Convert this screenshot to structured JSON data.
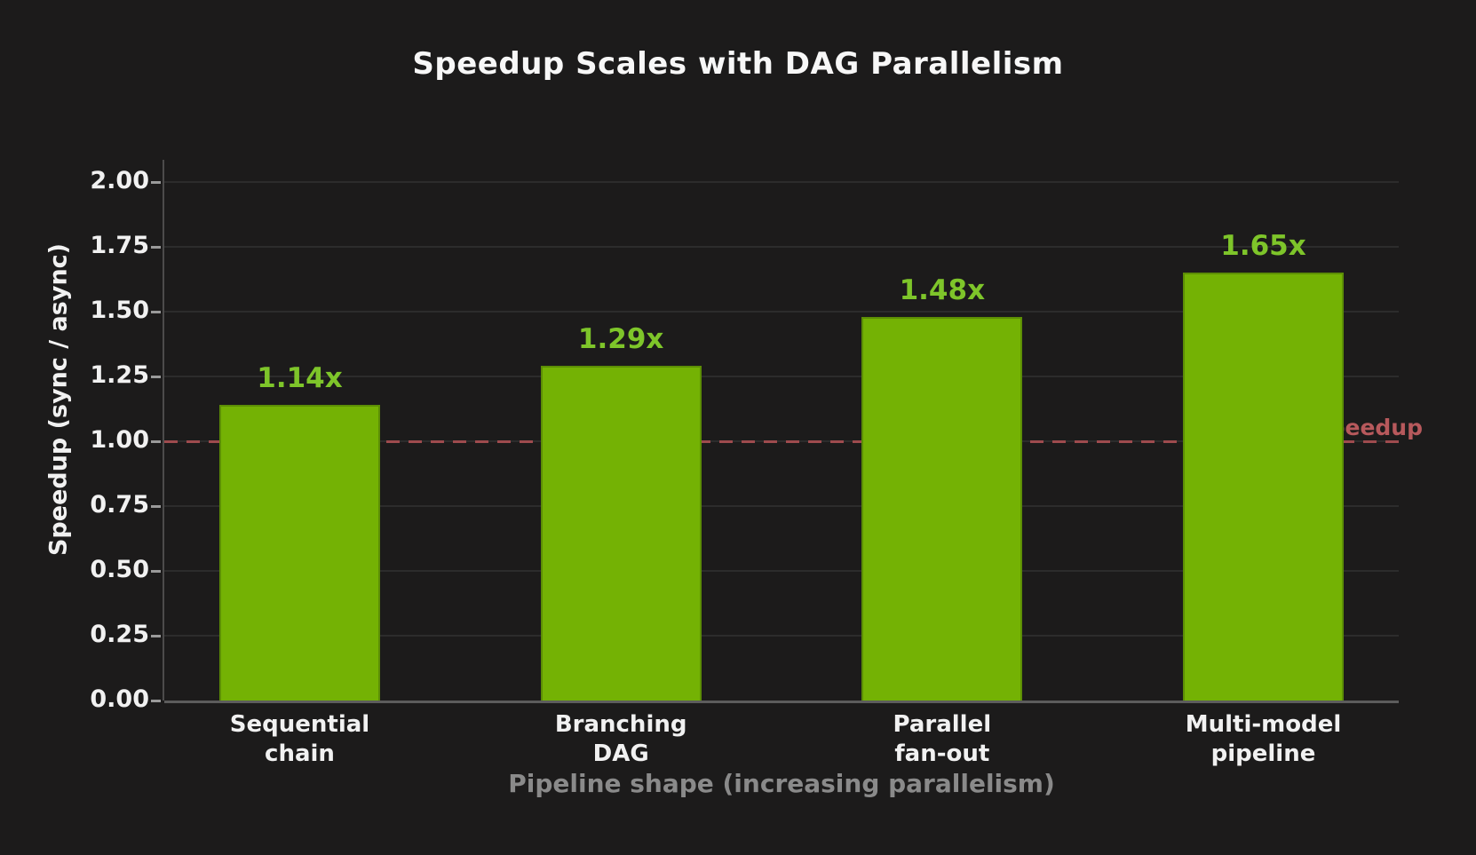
{
  "chart_data": {
    "type": "bar",
    "title": "Speedup Scales with DAG Parallelism",
    "xlabel": "Pipeline shape (increasing parallelism)",
    "ylabel": "Speedup (sync / async)",
    "categories": [
      "Sequential\nchain",
      "Branching\nDAG",
      "Parallel\nfan-out",
      "Multi-model\npipeline"
    ],
    "values": [
      1.14,
      1.29,
      1.48,
      1.65
    ],
    "bar_labels": [
      "1.14x",
      "1.29x",
      "1.48x",
      "1.65x"
    ],
    "ylim": [
      0,
      2
    ],
    "yticks": [
      "0.00",
      "0.25",
      "0.50",
      "0.75",
      "1.00",
      "1.25",
      "1.50",
      "1.75",
      "2.00"
    ],
    "grid": "horizontal",
    "legend": "none",
    "ref_line": {
      "value": 1.0,
      "label": "no speedup",
      "style": "dashed"
    },
    "colors": {
      "background": "#1c1b1b",
      "bar_fill": "#74b204",
      "bar_edge": "#5c8e05",
      "value_label": "#7ec52a",
      "ref_line": "#9e4b4e",
      "ref_label": "#b7595c",
      "title_text": "#f7f7f7",
      "tick_text": "#f1f1f1",
      "x_axis_title": "#8a8a8a",
      "grid_line": "#2c2c2c",
      "spine": "#5c5c5c",
      "tick_mark": "#9a9a9a"
    }
  }
}
